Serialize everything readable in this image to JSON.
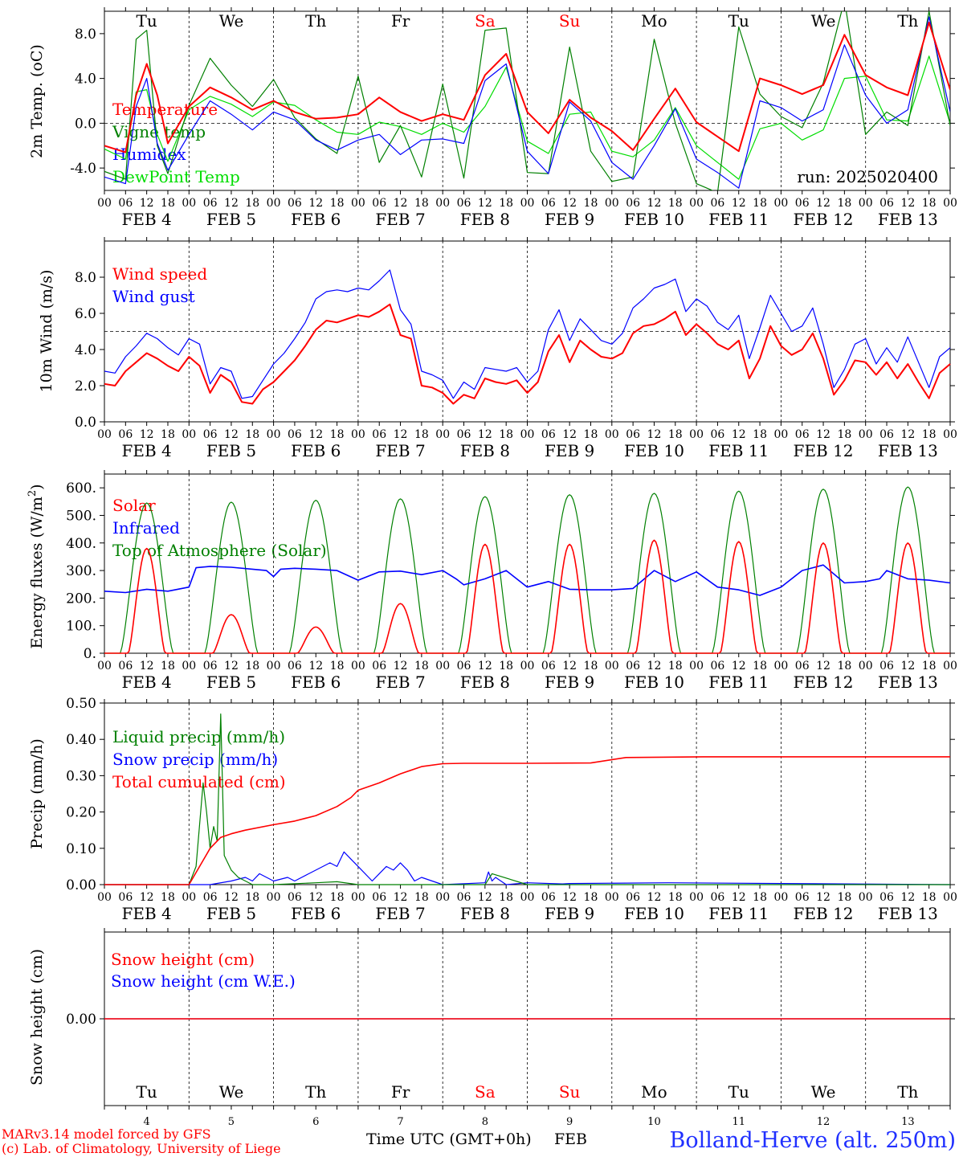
{
  "colors": {
    "red": "#ff0000",
    "green": "#008000",
    "blue": "#0000ff",
    "lightgreen": "#00dd00",
    "black": "#000000",
    "title_blue": "#2030ff"
  },
  "days": {
    "dates": [
      "4",
      "5",
      "6",
      "7",
      "8",
      "9",
      "10",
      "11",
      "12",
      "13"
    ],
    "date_labels": [
      "FEB  4",
      "FEB  5",
      "FEB  6",
      "FEB  7",
      "FEB  8",
      "FEB  9",
      "FEB 10",
      "FEB 11",
      "FEB 12",
      "FEB 13"
    ],
    "weekdays": [
      "Tu",
      "We",
      "Th",
      "Fr",
      "Sa",
      "Su",
      "Mo",
      "Tu",
      "We",
      "Th"
    ],
    "weekday_colors": [
      "black",
      "black",
      "black",
      "black",
      "red",
      "red",
      "black",
      "black",
      "black",
      "black"
    ],
    "hour_ticks": [
      "00",
      "06",
      "12",
      "18"
    ],
    "hour_end": "00"
  },
  "footer": {
    "model": "MARv3.14 model forced by GFS",
    "lab": "(c) Lab. of Climatology, University of Liege",
    "xlabel": "Time UTC (GMT+0h)",
    "month": "FEB",
    "station": "Bolland-Herve (alt. 250m)"
  },
  "chart_data": [
    {
      "type": "line",
      "ylabel": "2m Temp. (oC)",
      "ylim": [
        -6,
        10
      ],
      "yticks": [
        -4.0,
        0.0,
        4.0,
        8.0
      ],
      "ytick_labels": [
        "-4.0",
        "0.0",
        "4.0",
        "8.0"
      ],
      "reference": 0.0,
      "annotation": "run: 2025020400",
      "x_hours": [
        0,
        6,
        9,
        12,
        15,
        18,
        24,
        30,
        36,
        42,
        48,
        54,
        60,
        66,
        72,
        78,
        84,
        90,
        96,
        102,
        108,
        114,
        120,
        126,
        132,
        138,
        144,
        150,
        156,
        162,
        168,
        174,
        180,
        186,
        192,
        198,
        204,
        210,
        216,
        222,
        228,
        234,
        240
      ],
      "series": [
        {
          "name": "Temperature",
          "color": "red",
          "values": [
            -2.0,
            -2.6,
            2.5,
            5.3,
            2.5,
            -1.8,
            1.5,
            3.2,
            2.3,
            1.2,
            2.0,
            1.0,
            0.4,
            0.5,
            0.8,
            2.3,
            1.0,
            0.2,
            0.8,
            0.3,
            4.3,
            6.2,
            1.0,
            -0.9,
            2.1,
            0.5,
            -0.7,
            -2.4,
            0.4,
            3.1,
            0.1,
            -1.2,
            -2.5,
            4.0,
            3.4,
            2.6,
            3.4,
            7.9,
            4.3,
            3.2,
            2.5,
            9.0,
            3.0
          ]
        },
        {
          "name": "Vigne temp",
          "color": "green",
          "values": [
            -4.3,
            -5.0,
            7.5,
            8.3,
            -2.0,
            -4.5,
            1.6,
            5.8,
            3.4,
            1.5,
            3.9,
            0.5,
            -1.4,
            -2.7,
            4.2,
            -3.5,
            -0.2,
            -4.8,
            3.5,
            -4.9,
            8.3,
            8.5,
            -4.4,
            -4.5,
            6.8,
            -2.5,
            -5.2,
            -4.8,
            7.5,
            0.0,
            -5.4,
            -6.2,
            8.6,
            2.6,
            0.6,
            -0.4,
            3.6,
            11.0,
            -1.0,
            1.0,
            -0.2,
            10.0,
            -0.2
          ]
        },
        {
          "name": "Humidex",
          "color": "blue",
          "values": [
            -4.8,
            -5.4,
            1.5,
            4.0,
            -1.8,
            -4.2,
            -1.0,
            2.0,
            0.8,
            -0.6,
            1.0,
            0.3,
            -1.5,
            -2.4,
            -1.5,
            -1.0,
            -2.8,
            -1.5,
            -1.4,
            -1.8,
            3.8,
            5.3,
            -2.5,
            -4.5,
            1.9,
            0.2,
            -3.5,
            -5.0,
            -2.0,
            1.3,
            -3.2,
            -4.4,
            -5.8,
            2.0,
            1.4,
            0.2,
            1.2,
            7.0,
            2.5,
            0.0,
            1.2,
            9.5,
            1.0
          ]
        },
        {
          "name": "DewPoint Temp",
          "color": "lightgreen",
          "values": [
            -2.3,
            -3.2,
            2.8,
            3.0,
            -1.0,
            -3.4,
            1.2,
            2.4,
            1.7,
            0.6,
            1.9,
            1.6,
            0.3,
            -0.8,
            -1.0,
            0.1,
            -0.3,
            -1.0,
            0.0,
            -0.8,
            1.5,
            5.0,
            -1.6,
            -2.7,
            0.8,
            1.0,
            -2.5,
            -3.0,
            -1.5,
            1.4,
            -2.0,
            -3.5,
            -5.0,
            -0.5,
            0.0,
            -1.5,
            -0.6,
            4.0,
            4.2,
            0.3,
            0.2,
            6.0,
            0.0
          ]
        }
      ]
    },
    {
      "type": "line",
      "ylabel": "10m Wind (m/s)",
      "ylim": [
        0,
        10
      ],
      "yticks": [
        0.0,
        2.0,
        4.0,
        6.0,
        8.0
      ],
      "ytick_labels": [
        "0.0",
        "2.0",
        "4.0",
        "6.0",
        "8.0"
      ],
      "reference": 5.0,
      "x_hours": [
        0,
        3,
        6,
        9,
        12,
        15,
        18,
        21,
        24,
        27,
        30,
        33,
        36,
        39,
        42,
        45,
        48,
        51,
        54,
        57,
        60,
        63,
        66,
        69,
        72,
        75,
        78,
        81,
        84,
        87,
        90,
        93,
        96,
        99,
        102,
        105,
        108,
        111,
        114,
        117,
        120,
        123,
        126,
        129,
        132,
        135,
        138,
        141,
        144,
        147,
        150,
        153,
        156,
        159,
        162,
        165,
        168,
        171,
        174,
        177,
        180,
        183,
        186,
        189,
        192,
        195,
        198,
        201,
        204,
        207,
        210,
        213,
        216,
        219,
        222,
        225,
        228,
        231,
        234,
        237,
        240
      ],
      "series": [
        {
          "name": "Wind speed",
          "color": "red",
          "values": [
            2.1,
            2.0,
            2.8,
            3.3,
            3.8,
            3.5,
            3.1,
            2.8,
            3.6,
            3.1,
            1.6,
            2.6,
            2.2,
            1.1,
            1.0,
            1.8,
            2.2,
            2.8,
            3.4,
            4.2,
            5.1,
            5.6,
            5.5,
            5.7,
            5.9,
            5.8,
            6.1,
            6.5,
            4.8,
            4.6,
            2.0,
            1.9,
            1.6,
            1.0,
            1.5,
            1.3,
            2.4,
            2.2,
            2.1,
            2.3,
            1.6,
            2.2,
            3.9,
            4.8,
            3.3,
            4.5,
            4.0,
            3.6,
            3.5,
            3.8,
            4.9,
            5.3,
            5.4,
            5.7,
            6.1,
            4.8,
            5.4,
            4.9,
            4.3,
            4.0,
            4.5,
            2.4,
            3.5,
            5.3,
            4.2,
            3.7,
            4.0,
            4.9,
            3.5,
            1.5,
            2.3,
            3.4,
            3.3,
            2.6,
            3.3,
            2.4,
            3.2,
            2.2,
            1.3,
            2.7,
            3.2
          ]
        },
        {
          "name": "Wind gust",
          "color": "blue",
          "values": [
            2.8,
            2.7,
            3.6,
            4.2,
            4.9,
            4.6,
            4.1,
            3.7,
            4.6,
            4.3,
            2.1,
            3.0,
            2.8,
            1.3,
            1.4,
            2.3,
            3.2,
            3.8,
            4.6,
            5.5,
            6.8,
            7.2,
            7.3,
            7.2,
            7.4,
            7.3,
            7.8,
            8.4,
            6.2,
            5.4,
            2.8,
            2.6,
            2.3,
            1.3,
            2.2,
            1.8,
            3.0,
            2.9,
            2.8,
            3.0,
            2.2,
            2.8,
            5.1,
            6.2,
            4.5,
            5.7,
            5.1,
            4.5,
            4.3,
            4.9,
            6.3,
            6.8,
            7.4,
            7.6,
            7.9,
            6.1,
            6.8,
            6.4,
            5.5,
            5.1,
            5.9,
            3.5,
            5.2,
            7.0,
            6.0,
            5.0,
            5.3,
            6.3,
            4.3,
            1.9,
            2.9,
            4.3,
            4.6,
            3.2,
            4.1,
            3.3,
            4.7,
            3.3,
            1.9,
            3.6,
            4.1
          ]
        }
      ]
    },
    {
      "type": "line",
      "ylabel": "Energy fluxes (W/m2)",
      "ylim": [
        0,
        650
      ],
      "yticks": [
        0,
        100,
        200,
        300,
        400,
        500,
        600
      ],
      "ytick_labels": [
        "0.",
        "100.",
        "200.",
        "300.",
        "400.",
        "500.",
        "600."
      ],
      "peaks": {
        "solar": [
          380,
          140,
          95,
          180,
          395,
          395,
          410,
          405,
          400,
          400
        ],
        "toa": [
          545,
          548,
          555,
          560,
          568,
          575,
          580,
          588,
          595,
          603
        ]
      },
      "series": [
        {
          "name": "Solar",
          "color": "red"
        },
        {
          "name": "Infrared",
          "color": "blue",
          "x_hours": [
            0,
            6,
            12,
            18,
            24,
            26,
            30,
            36,
            42,
            46,
            48,
            50,
            54,
            60,
            66,
            72,
            78,
            84,
            90,
            96,
            100,
            102,
            108,
            114,
            120,
            126,
            132,
            138,
            144,
            150,
            156,
            162,
            168,
            174,
            180,
            186,
            192,
            198,
            204,
            210,
            216,
            220,
            222,
            228,
            234,
            240
          ],
          "values": [
            225,
            220,
            232,
            225,
            240,
            310,
            315,
            312,
            305,
            300,
            278,
            305,
            308,
            305,
            300,
            265,
            295,
            298,
            285,
            300,
            268,
            248,
            270,
            300,
            240,
            260,
            232,
            230,
            230,
            235,
            300,
            260,
            295,
            240,
            230,
            210,
            240,
            300,
            320,
            255,
            260,
            270,
            300,
            270,
            265,
            255
          ]
        },
        {
          "name": "Top of Atmosphere (Solar)",
          "color": "green"
        }
      ]
    },
    {
      "type": "line",
      "ylabel": "Precip (mm/h)",
      "ylim": [
        0,
        0.5
      ],
      "yticks": [
        0.0,
        0.1,
        0.2,
        0.3,
        0.4,
        0.5
      ],
      "ytick_labels": [
        "0.00",
        "0.10",
        "0.20",
        "0.30",
        "0.40",
        "0.50"
      ],
      "series": [
        {
          "name": "Liquid precip (mm/h)",
          "color": "green",
          "x_hours": [
            0,
            24,
            26,
            28,
            29,
            30,
            31,
            32,
            33,
            34,
            36,
            38,
            40,
            42,
            48,
            60,
            66,
            72,
            108,
            110,
            120,
            200,
            240
          ],
          "values": [
            0,
            0,
            0.05,
            0.28,
            0.2,
            0.1,
            0.16,
            0.12,
            0.47,
            0.08,
            0.04,
            0.02,
            0.01,
            0,
            0,
            0.005,
            0.008,
            0,
            0,
            0.03,
            0,
            0,
            0
          ]
        },
        {
          "name": "Snow precip (mm/h)",
          "color": "blue",
          "x_hours": [
            0,
            30,
            36,
            40,
            42,
            44,
            48,
            52,
            54,
            58,
            60,
            64,
            66,
            68,
            70,
            72,
            76,
            78,
            80,
            82,
            84,
            86,
            88,
            90,
            96,
            108,
            109,
            110,
            111,
            114,
            120,
            130,
            132,
            160,
            240
          ],
          "values": [
            0,
            0,
            0.01,
            0.02,
            0.01,
            0.03,
            0.01,
            0.02,
            0.01,
            0.03,
            0.04,
            0.06,
            0.05,
            0.09,
            0.07,
            0.05,
            0.01,
            0.03,
            0.05,
            0.04,
            0.06,
            0.04,
            0.01,
            0.02,
            0,
            0.005,
            0.035,
            0.01,
            0.02,
            0,
            0.005,
            0.002,
            0.003,
            0.005,
            0
          ]
        },
        {
          "name": "Total cumulated (cm)",
          "color": "red",
          "x_hours": [
            0,
            24,
            27,
            30,
            33,
            36,
            40,
            48,
            54,
            60,
            66,
            70,
            72,
            78,
            84,
            90,
            96,
            102,
            108,
            114,
            120,
            138,
            148,
            170,
            200,
            240
          ],
          "values": [
            0,
            0,
            0.05,
            0.1,
            0.13,
            0.14,
            0.15,
            0.165,
            0.175,
            0.19,
            0.215,
            0.24,
            0.26,
            0.28,
            0.305,
            0.325,
            0.333,
            0.334,
            0.334,
            0.334,
            0.334,
            0.335,
            0.35,
            0.352,
            0.352,
            0.352
          ]
        }
      ]
    },
    {
      "type": "line",
      "ylabel": "Snow height (cm)",
      "yticks": [
        0.0
      ],
      "ytick_labels": [
        "0.00"
      ],
      "series": [
        {
          "name": "Snow height (cm)",
          "color": "red",
          "values": [
            0,
            0
          ]
        },
        {
          "name": "Snow height (cm W.E.)",
          "color": "blue",
          "values": [
            0,
            0
          ]
        }
      ]
    }
  ]
}
